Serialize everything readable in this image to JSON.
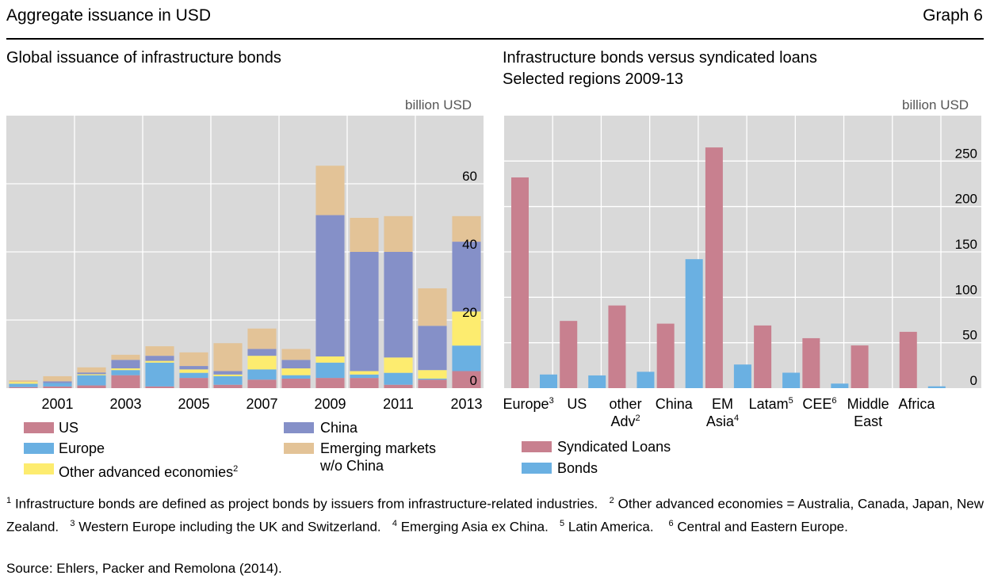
{
  "header": {
    "title": "Aggregate issuance in USD",
    "graph_label": "Graph 6"
  },
  "left": {
    "title": "Global issuance of infrastructure bonds",
    "unit": "billion USD",
    "legend": [
      {
        "label": "US",
        "color": "#c8808f"
      },
      {
        "label": "China",
        "color": "#8590c8"
      },
      {
        "label": "Europe",
        "color": "#6ab0e2"
      },
      {
        "label": "Emerging markets",
        "label2": "w/o China",
        "color": "#e3c397"
      },
      {
        "label": "Other advanced economies",
        "sup": "2",
        "color": "#fdec6f"
      }
    ]
  },
  "right": {
    "title": "Infrastructure bonds versus syndicated loans",
    "subtitle": "Selected regions 2009-13",
    "unit": "billion USD",
    "legend": [
      {
        "label": "Syndicated Loans",
        "color": "#c8808f"
      },
      {
        "label": "Bonds",
        "color": "#6ab0e2"
      }
    ]
  },
  "chart_data": [
    {
      "type": "bar",
      "stacked": true,
      "title": "Global issuance of infrastructure bonds",
      "ylabel": "billion USD",
      "ylim": [
        0,
        80
      ],
      "yticks": [
        "0",
        "20",
        "40",
        "60"
      ],
      "ytick_values": [
        0,
        20,
        40,
        60
      ],
      "xticks": [
        "2001",
        "2003",
        "2005",
        "2007",
        "2009",
        "2011",
        "2013"
      ],
      "categories": [
        "2000",
        "2001",
        "2002",
        "2003",
        "2004",
        "2005",
        "2006",
        "2007",
        "2008",
        "2009",
        "2010",
        "2011",
        "2012",
        "2013"
      ],
      "series": [
        {
          "name": "US",
          "color": "#c8808f",
          "values": [
            0.3,
            0.5,
            0.8,
            3.8,
            0.5,
            3.0,
            1.0,
            2.5,
            2.8,
            3.0,
            3.0,
            1.0,
            2.5,
            5.0
          ]
        },
        {
          "name": "Europe",
          "color": "#6ab0e2",
          "values": [
            1.0,
            1.0,
            3.0,
            1.5,
            7.0,
            1.5,
            2.5,
            3.0,
            1.0,
            4.5,
            1.0,
            3.5,
            0.3,
            7.5
          ]
        },
        {
          "name": "Other advanced economies",
          "color": "#fdec6f",
          "values": [
            0.5,
            0.0,
            0.3,
            0.5,
            0.5,
            1.0,
            0.5,
            4.0,
            2.0,
            1.8,
            1.0,
            4.5,
            2.5,
            10.0
          ]
        },
        {
          "name": "China",
          "color": "#8590c8",
          "values": [
            0.0,
            0.5,
            0.5,
            2.5,
            1.5,
            1.0,
            1.0,
            2.0,
            2.5,
            41.5,
            35.0,
            31.0,
            13.0,
            20.5
          ]
        },
        {
          "name": "Emerging markets w/o China",
          "color": "#e3c397",
          "values": [
            0.5,
            1.5,
            1.5,
            1.5,
            2.8,
            4.0,
            8.2,
            6.0,
            3.2,
            14.5,
            10.0,
            10.5,
            11.0,
            7.5
          ]
        }
      ]
    },
    {
      "type": "bar",
      "title": "Infrastructure bonds versus syndicated loans",
      "subtitle": "Selected regions 2009-13",
      "ylabel": "billion USD",
      "ylim": [
        0,
        300
      ],
      "yticks": [
        "0",
        "50",
        "100",
        "150",
        "200",
        "250"
      ],
      "ytick_values": [
        0,
        50,
        100,
        150,
        200,
        250
      ],
      "categories": [
        {
          "lines": [
            "Europe"
          ],
          "sup": "3"
        },
        {
          "lines": [
            "US"
          ],
          "sup": ""
        },
        {
          "lines": [
            "other",
            "Adv"
          ],
          "sup": "2"
        },
        {
          "lines": [
            "China"
          ],
          "sup": ""
        },
        {
          "lines": [
            "EM",
            "Asia"
          ],
          "sup": "4"
        },
        {
          "lines": [
            "Latam"
          ],
          "sup": "5"
        },
        {
          "lines": [
            "CEE"
          ],
          "sup": "6"
        },
        {
          "lines": [
            "Middle",
            "East"
          ],
          "sup": ""
        },
        {
          "lines": [
            "Africa"
          ],
          "sup": ""
        }
      ],
      "series": [
        {
          "name": "Syndicated Loans",
          "color": "#c8808f",
          "values": [
            232,
            74,
            91,
            71,
            265,
            69,
            55,
            47,
            62
          ]
        },
        {
          "name": "Bonds",
          "color": "#6ab0e2",
          "values": [
            15,
            14,
            18,
            142,
            26,
            17,
            5,
            0,
            2
          ]
        }
      ]
    }
  ],
  "footnotes": {
    "n1": "Infrastructure bonds are defined as project bonds by issuers from infrastructure-related industries.",
    "n2": "Other advanced economies = Australia, Canada, Japan, New Zealand.",
    "n3": "Western Europe including the UK and Switzerland.",
    "n4": "Emerging Asia ex China.",
    "n5": "Latin America.",
    "n6": "Central and Eastern Europe.",
    "m1": "1",
    "m2": "2",
    "m3": "3",
    "m4": "4",
    "m5": "5",
    "m6": "6"
  },
  "source": "Source: Ehlers, Packer and Remolona (2014)."
}
